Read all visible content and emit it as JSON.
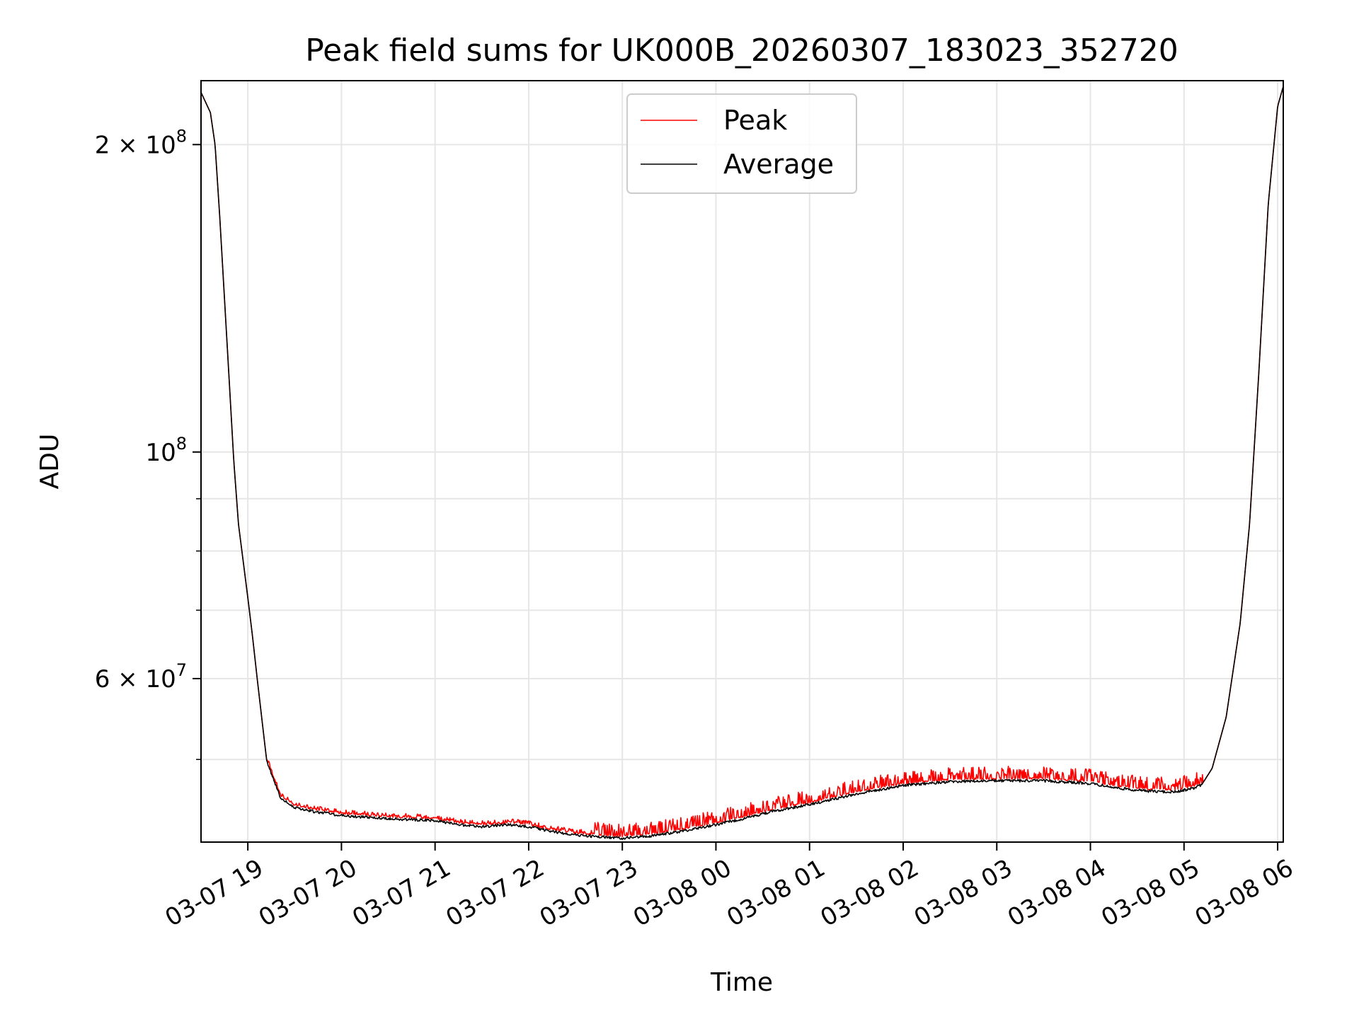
{
  "chart_data": {
    "type": "line",
    "title": "Peak field sums for UK000B_20260307_183023_352720",
    "xlabel": "Time",
    "ylabel": "ADU",
    "yscale": "log",
    "ylim": [
      41500000,
      231000000
    ],
    "xlim_hours": [
      18.5,
      30.06
    ],
    "grid": true,
    "legend_position": "top-center",
    "x_ticks": [
      {
        "hour": 19,
        "label": "03-07 19"
      },
      {
        "hour": 20,
        "label": "03-07 20"
      },
      {
        "hour": 21,
        "label": "03-07 21"
      },
      {
        "hour": 22,
        "label": "03-07 22"
      },
      {
        "hour": 23,
        "label": "03-07 23"
      },
      {
        "hour": 24,
        "label": "03-08 00"
      },
      {
        "hour": 25,
        "label": "03-08 01"
      },
      {
        "hour": 26,
        "label": "03-08 02"
      },
      {
        "hour": 27,
        "label": "03-08 03"
      },
      {
        "hour": 28,
        "label": "03-08 04"
      },
      {
        "hour": 29,
        "label": "03-08 05"
      },
      {
        "hour": 30,
        "label": "03-08 06"
      }
    ],
    "y_major_ticks": [
      {
        "value": 60000000,
        "mantissa": "6",
        "exponent": "7"
      },
      {
        "value": 100000000,
        "mantissa": "",
        "exponent": "8"
      },
      {
        "value": 200000000,
        "mantissa": "2",
        "exponent": "8"
      }
    ],
    "y_minor_ticks": [
      50000000,
      70000000,
      80000000,
      90000000,
      300000000
    ],
    "times_symbol": "×",
    "base_ten": "10",
    "series": [
      {
        "name": "Peak",
        "color": "#ff0000",
        "noise_above_average": 0.03,
        "x_hours": [
          18.5,
          18.6,
          18.65,
          18.7,
          18.8,
          18.85,
          18.9,
          19.0,
          19.05,
          19.1,
          19.2,
          19.35,
          19.5,
          19.7,
          20.0,
          20.3,
          20.7,
          21.0,
          21.25,
          21.5,
          21.8,
          22.0,
          22.2,
          22.5,
          22.8,
          23.0,
          23.3,
          23.6,
          24.0,
          24.3,
          24.6,
          25.0,
          25.5,
          26.0,
          26.5,
          27.0,
          27.5,
          28.0,
          28.3,
          28.6,
          28.9,
          29.1,
          29.2,
          29.3,
          29.45,
          29.6,
          29.7,
          29.8,
          29.9,
          30.0,
          30.06
        ],
        "values": [
          225000000,
          215000000,
          200000000,
          170000000,
          118000000,
          98000000,
          85000000,
          72000000,
          66000000,
          60000000,
          50000000,
          46000000,
          45000000,
          44600000,
          44200000,
          44000000,
          43800000,
          43700000,
          43300000,
          43100000,
          43300000,
          43100000,
          42700000,
          42300000,
          42100000,
          42000000,
          42200000,
          42600000,
          43300000,
          43900000,
          44600000,
          45300000,
          46400000,
          47300000,
          47700000,
          47800000,
          47800000,
          47500000,
          47000000,
          46700000,
          46600000,
          47000000,
          47400000,
          49000000,
          55000000,
          68000000,
          85000000,
          120000000,
          175000000,
          218000000,
          228000000
        ]
      },
      {
        "name": "Average",
        "color": "#000000",
        "noise_above_average": 0,
        "x_hours": [
          18.5,
          18.6,
          18.65,
          18.7,
          18.8,
          18.85,
          18.9,
          19.0,
          19.05,
          19.1,
          19.2,
          19.35,
          19.5,
          19.7,
          20.0,
          20.3,
          20.7,
          21.0,
          21.25,
          21.5,
          21.8,
          22.0,
          22.2,
          22.5,
          22.8,
          23.0,
          23.3,
          23.6,
          24.0,
          24.3,
          24.6,
          25.0,
          25.5,
          26.0,
          26.5,
          27.0,
          27.5,
          28.0,
          28.3,
          28.6,
          28.9,
          29.1,
          29.2,
          29.3,
          29.45,
          29.6,
          29.7,
          29.8,
          29.9,
          30.0,
          30.06
        ],
        "values": [
          225000000,
          215000000,
          200000000,
          170000000,
          118000000,
          98000000,
          85000000,
          72000000,
          66000000,
          60000000,
          50000000,
          46000000,
          45000000,
          44600000,
          44200000,
          44000000,
          43800000,
          43700000,
          43300000,
          43100000,
          43300000,
          43100000,
          42700000,
          42300000,
          42100000,
          42000000,
          42200000,
          42600000,
          43300000,
          43900000,
          44600000,
          45300000,
          46400000,
          47300000,
          47700000,
          47800000,
          47800000,
          47500000,
          47000000,
          46700000,
          46600000,
          47000000,
          47400000,
          49000000,
          55000000,
          68000000,
          85000000,
          120000000,
          175000000,
          218000000,
          228000000
        ]
      }
    ]
  }
}
